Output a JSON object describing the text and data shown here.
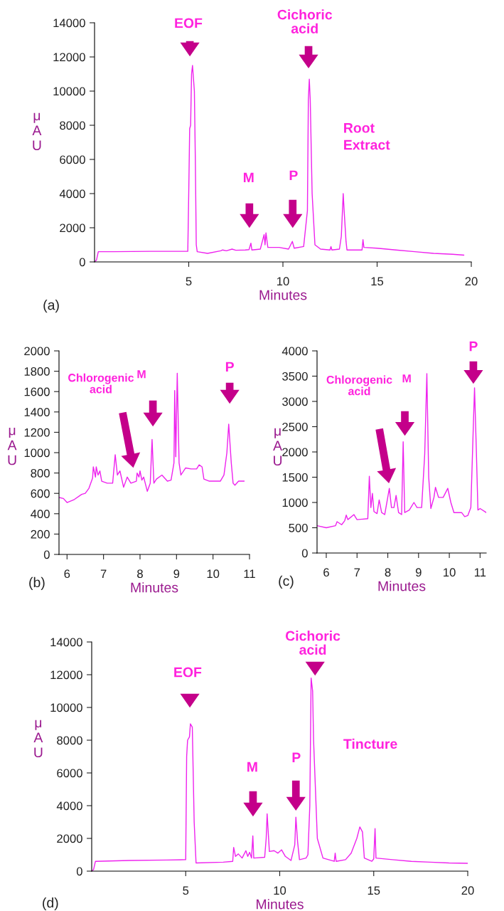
{
  "chart_data": [
    {
      "type": "line",
      "xlabel": "Minutes",
      "ylabel": "μAU",
      "xlim": [
        0,
        20
      ],
      "ylim": [
        0,
        14000
      ],
      "xticks": [
        5,
        10,
        15,
        20
      ],
      "yticks": [
        0,
        2000,
        4000,
        6000,
        8000,
        10000,
        12000,
        14000
      ],
      "annotations": [
        "EOF",
        "M",
        "P",
        "Cichoric\nacid",
        "Root\nExtract",
        "(a)"
      ],
      "series": [
        {
          "color": "#ee22ee",
          "x": [
            0,
            0.1,
            0.2,
            1,
            2,
            3,
            4,
            4.95,
            5.0,
            5.05,
            5.1,
            5.15,
            5.2,
            5.3,
            5.35,
            5.4,
            5.45,
            6,
            6.7,
            6.8,
            7,
            7.3,
            7.5,
            8,
            8.2,
            8.3,
            8.35,
            8.8,
            9.0,
            9.05,
            9.1,
            9.2,
            9.8,
            10.3,
            10.5,
            10.6,
            11.1,
            11.3,
            11.35,
            11.4,
            11.45,
            11.55,
            11.7,
            12,
            12.5,
            12.55,
            12.6,
            13.0,
            13.1,
            13.2,
            13.25,
            13.35,
            13.4,
            14.2,
            14.25,
            14.3,
            15,
            16,
            17,
            18,
            19,
            19.6
          ],
          "values": [
            0,
            100,
            600,
            600,
            610,
            620,
            620,
            620,
            4000,
            7800,
            8000,
            11000,
            11500,
            10000,
            6000,
            1000,
            600,
            500,
            650,
            700,
            650,
            750,
            680,
            700,
            720,
            1100,
            700,
            750,
            1600,
            1000,
            1700,
            850,
            850,
            750,
            1200,
            800,
            900,
            3000,
            9500,
            10700,
            9500,
            4000,
            1000,
            750,
            700,
            900,
            700,
            750,
            1500,
            4000,
            3000,
            1200,
            700,
            700,
            1300,
            850,
            800,
            700,
            600,
            500,
            450,
            400
          ]
        }
      ]
    },
    {
      "type": "line",
      "xlabel": "Minutes",
      "ylabel": "μAU",
      "xlim": [
        5.78,
        11
      ],
      "ylim": [
        0,
        2000
      ],
      "xticks": [
        6,
        7,
        8,
        9,
        10,
        11
      ],
      "yticks": [
        0,
        200,
        400,
        600,
        800,
        1000,
        1200,
        1400,
        1600,
        1800,
        2000
      ],
      "annotations": [
        "Chlorogenic\nacid",
        "M",
        "P",
        "(b)"
      ],
      "series": [
        {
          "color": "#ee22ee",
          "x": [
            5.78,
            5.9,
            6.0,
            6.2,
            6.4,
            6.5,
            6.6,
            6.7,
            6.72,
            6.78,
            6.8,
            6.85,
            6.9,
            6.95,
            7.1,
            7.25,
            7.32,
            7.38,
            7.45,
            7.55,
            7.65,
            7.75,
            7.9,
            7.92,
            7.97,
            8.0,
            8.05,
            8.1,
            8.2,
            8.28,
            8.33,
            8.38,
            8.45,
            8.6,
            8.75,
            8.85,
            8.93,
            8.95,
            8.98,
            9.02,
            9.07,
            9.12,
            9.25,
            9.4,
            9.55,
            9.62,
            9.7,
            9.75,
            9.9,
            10.2,
            10.3,
            10.38,
            10.43,
            10.5,
            10.55,
            10.6,
            10.7,
            10.85
          ],
          "values": [
            560,
            550,
            510,
            540,
            590,
            600,
            650,
            750,
            860,
            760,
            860,
            780,
            820,
            720,
            700,
            700,
            980,
            780,
            820,
            660,
            760,
            700,
            720,
            800,
            760,
            820,
            730,
            760,
            620,
            700,
            1130,
            700,
            740,
            780,
            720,
            730,
            900,
            1610,
            960,
            1780,
            900,
            780,
            850,
            840,
            840,
            880,
            860,
            740,
            720,
            720,
            780,
            1000,
            1280,
            900,
            700,
            680,
            720,
            720
          ]
        }
      ]
    },
    {
      "type": "line",
      "xlabel": "Minutes",
      "ylabel": "μAU",
      "xlim": [
        5.7,
        11.2
      ],
      "ylim": [
        0,
        4000
      ],
      "xticks": [
        6,
        7,
        8,
        9,
        10,
        11
      ],
      "yticks": [
        0,
        500,
        1000,
        1500,
        2000,
        2500,
        3000,
        3500,
        4000
      ],
      "annotations": [
        "Chlorogenic\nacid",
        "M",
        "P",
        "(c)"
      ],
      "series": [
        {
          "color": "#ee22ee",
          "x": [
            5.7,
            6.0,
            6.3,
            6.35,
            6.5,
            6.6,
            6.65,
            6.7,
            6.9,
            7.0,
            7.35,
            7.4,
            7.45,
            7.5,
            7.55,
            7.65,
            7.72,
            7.8,
            7.9,
            8.05,
            8.12,
            8.2,
            8.27,
            8.35,
            8.45,
            8.5,
            8.55,
            8.7,
            8.85,
            8.95,
            9.1,
            9.2,
            9.27,
            9.33,
            9.4,
            9.5,
            9.55,
            9.65,
            9.8,
            9.95,
            10.05,
            10.15,
            10.4,
            10.5,
            10.6,
            10.7,
            10.78,
            10.82,
            10.88,
            10.93,
            11.0,
            11.2
          ],
          "values": [
            540,
            500,
            540,
            620,
            560,
            640,
            750,
            660,
            760,
            660,
            680,
            1520,
            900,
            1180,
            820,
            780,
            1050,
            800,
            760,
            1280,
            900,
            900,
            1140,
            800,
            760,
            2200,
            800,
            850,
            1000,
            900,
            900,
            1950,
            3550,
            1500,
            880,
            1100,
            1300,
            1100,
            1100,
            1280,
            1000,
            800,
            800,
            720,
            740,
            900,
            2500,
            3270,
            2000,
            850,
            880,
            800
          ]
        }
      ]
    },
    {
      "type": "line",
      "xlabel": "Minutes",
      "ylabel": "μAU",
      "xlim": [
        0,
        20
      ],
      "ylim": [
        0,
        14000
      ],
      "xticks": [
        5,
        10,
        15,
        20
      ],
      "yticks": [
        0,
        2000,
        4000,
        6000,
        8000,
        10000,
        12000,
        14000
      ],
      "annotations": [
        "EOF",
        "M",
        "P",
        "Cichoric\nacid",
        "Tincture",
        "(d)"
      ],
      "series": [
        {
          "color": "#ee22ee",
          "x": [
            0,
            0.1,
            0.2,
            2,
            4,
            5.0,
            5.05,
            5.1,
            5.2,
            5.25,
            5.35,
            5.45,
            5.55,
            7,
            7.5,
            7.55,
            7.65,
            7.8,
            8.0,
            8.2,
            8.3,
            8.4,
            8.5,
            8.57,
            8.62,
            9.2,
            9.28,
            9.33,
            9.45,
            9.7,
            9.9,
            10.1,
            10.3,
            10.6,
            10.8,
            10.86,
            10.95,
            11.05,
            11.4,
            11.5,
            11.6,
            11.67,
            11.75,
            11.8,
            12.0,
            12.3,
            12.9,
            12.95,
            13.0,
            13.5,
            13.8,
            14.1,
            14.26,
            14.4,
            14.5,
            14.9,
            15.0,
            15.07,
            15.12,
            16,
            17,
            18,
            19,
            20
          ],
          "values": [
            0,
            100,
            600,
            650,
            680,
            700,
            7000,
            8000,
            8200,
            9000,
            8800,
            3000,
            500,
            550,
            600,
            1450,
            900,
            1050,
            800,
            1250,
            900,
            1150,
            800,
            2150,
            800,
            850,
            2000,
            3500,
            1200,
            1250,
            1100,
            1300,
            900,
            650,
            1600,
            3300,
            1800,
            700,
            800,
            1000,
            4000,
            11800,
            11000,
            8000,
            2000,
            800,
            600,
            1100,
            600,
            700,
            1100,
            2000,
            2700,
            2400,
            800,
            600,
            750,
            2600,
            800,
            700,
            600,
            550,
            500,
            480
          ]
        }
      ]
    }
  ]
}
